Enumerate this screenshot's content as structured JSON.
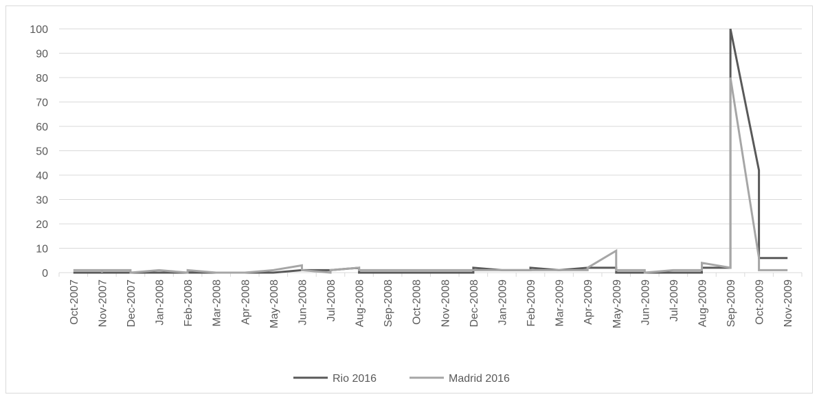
{
  "chart_data": {
    "type": "line",
    "title": "",
    "xlabel": "",
    "ylabel": "",
    "ylim": [
      0,
      100
    ],
    "y_ticks": [
      0,
      10,
      20,
      30,
      40,
      50,
      60,
      70,
      80,
      90,
      100
    ],
    "grid": true,
    "legend_position": "bottom",
    "categories": [
      "Oct-2007",
      "Nov-2007",
      "Dec-2007",
      "Jan-2008",
      "Feb-2008",
      "Mar-2008",
      "Apr-2008",
      "May-2008",
      "Jun-2008",
      "Jul-2008",
      "Aug-2008",
      "Sep-2008",
      "Oct-2008",
      "Nov-2008",
      "Dec-2008",
      "Jan-2009",
      "Feb-2009",
      "Mar-2009",
      "Apr-2009",
      "May-2009",
      "Jun-2009",
      "Jul-2009",
      "Aug-2009",
      "Sep-2009",
      "Oct-2009",
      "Nov-2009"
    ],
    "series": [
      {
        "name": "Rio 2016",
        "color": "#595959",
        "points": [
          [
            "Oct-2007",
            0
          ],
          [
            "Nov-2007",
            0
          ],
          [
            "Dec-2007",
            0
          ],
          [
            "Jan-2008",
            0
          ],
          [
            "Feb-2008",
            0
          ],
          [
            "Mar-2008",
            0
          ],
          [
            "Apr-2008",
            0
          ],
          [
            "May-2008",
            0
          ],
          [
            "Jun-2008",
            1
          ],
          [
            "Jul-2008",
            1
          ],
          [
            "Aug-2008",
            2
          ],
          [
            "Aug-2008",
            0
          ],
          [
            "Sep-2008",
            0
          ],
          [
            "Oct-2008",
            0
          ],
          [
            "Nov-2008",
            0
          ],
          [
            "Dec-2008",
            0
          ],
          [
            "Dec-2008",
            2
          ],
          [
            "Jan-2009",
            1
          ],
          [
            "Feb-2009",
            1
          ],
          [
            "Feb-2009",
            2
          ],
          [
            "Mar-2009",
            1
          ],
          [
            "Apr-2009",
            2
          ],
          [
            "May-2009",
            2
          ],
          [
            "May-2009",
            0
          ],
          [
            "Jun-2009",
            0
          ],
          [
            "Jul-2009",
            0
          ],
          [
            "Aug-2009",
            0
          ],
          [
            "Aug-2009",
            2
          ],
          [
            "Sep-2009",
            2
          ],
          [
            "Sep-2009",
            100
          ],
          [
            "Oct-2009",
            42
          ],
          [
            "Oct-2009",
            6
          ],
          [
            "Nov-2009",
            6
          ]
        ]
      },
      {
        "name": "Madrid 2016",
        "color": "#a6a6a6",
        "points": [
          [
            "Oct-2007",
            1
          ],
          [
            "Nov-2007",
            1
          ],
          [
            "Nov-2007",
            0
          ],
          [
            "Nov-2007",
            1
          ],
          [
            "Dec-2007",
            1
          ],
          [
            "Dec-2007",
            0
          ],
          [
            "Jan-2008",
            1
          ],
          [
            "Feb-2008",
            0
          ],
          [
            "Feb-2008",
            1
          ],
          [
            "Mar-2008",
            0
          ],
          [
            "Apr-2008",
            0
          ],
          [
            "May-2008",
            1
          ],
          [
            "Jun-2008",
            3
          ],
          [
            "Jun-2008",
            1
          ],
          [
            "Jul-2008",
            0
          ],
          [
            "Jul-2008",
            1
          ],
          [
            "Aug-2008",
            2
          ],
          [
            "Aug-2008",
            1
          ],
          [
            "Sep-2008",
            1
          ],
          [
            "Oct-2008",
            1
          ],
          [
            "Nov-2008",
            1
          ],
          [
            "Dec-2008",
            1
          ],
          [
            "Jan-2009",
            1
          ],
          [
            "Feb-2009",
            1
          ],
          [
            "Mar-2009",
            1
          ],
          [
            "Apr-2009",
            1
          ],
          [
            "Apr-2009",
            2
          ],
          [
            "May-2009",
            9
          ],
          [
            "May-2009",
            1
          ],
          [
            "Jun-2009",
            1
          ],
          [
            "Jun-2009",
            0
          ],
          [
            "Jul-2009",
            1
          ],
          [
            "Aug-2009",
            1
          ],
          [
            "Aug-2009",
            4
          ],
          [
            "Sep-2009",
            2
          ],
          [
            "Sep-2009",
            80
          ],
          [
            "Oct-2009",
            6
          ],
          [
            "Oct-2009",
            1
          ],
          [
            "Nov-2009",
            1
          ]
        ]
      }
    ]
  }
}
